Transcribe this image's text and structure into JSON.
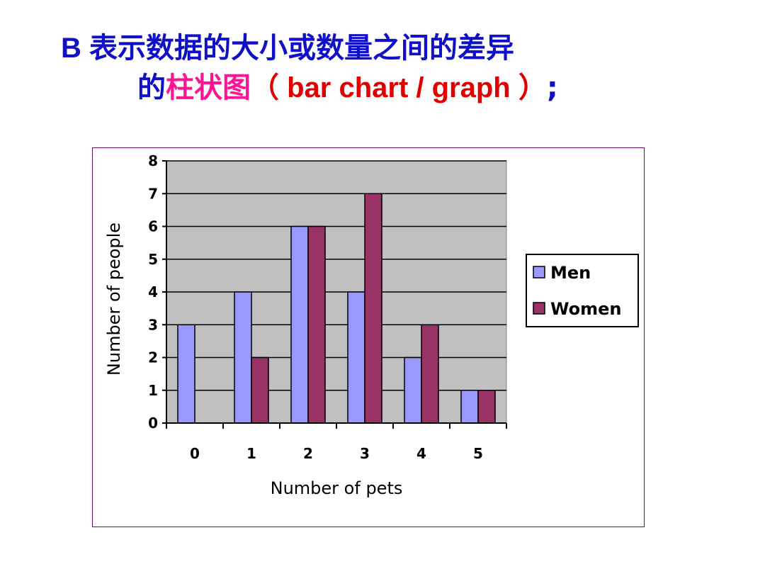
{
  "heading": {
    "line1_prefix": "B ",
    "line1_text": "表示数据的大小或数量之间的差异",
    "line2_de": "的",
    "line2_zhu": "柱状图",
    "line2_open": "（",
    "line2_en": " bar chart /  graph ",
    "line2_close": "）",
    "line2_semicolon": ";"
  },
  "colors": {
    "heading_blue": "#1010c8",
    "heading_pink": "#ff1493",
    "heading_red": "#e00000",
    "plot_background": "#c0c0c0",
    "men": "#9999ff",
    "women": "#993366",
    "frame_border": "#6a0a6a"
  },
  "chart_data": {
    "type": "bar",
    "categories": [
      "0",
      "1",
      "2",
      "3",
      "4",
      "5"
    ],
    "series": [
      {
        "name": "Men",
        "values": [
          3,
          4,
          6,
          4,
          2,
          1
        ]
      },
      {
        "name": "Women",
        "values": [
          0,
          2,
          6,
          7,
          3,
          1
        ]
      }
    ],
    "title": "",
    "xlabel": "Number of pets",
    "ylabel": "Number of people",
    "ylim": [
      0,
      8
    ],
    "yticks": [
      "0",
      "1",
      "2",
      "3",
      "4",
      "5",
      "6",
      "7",
      "8"
    ],
    "grid": true,
    "legend_position": "right"
  }
}
